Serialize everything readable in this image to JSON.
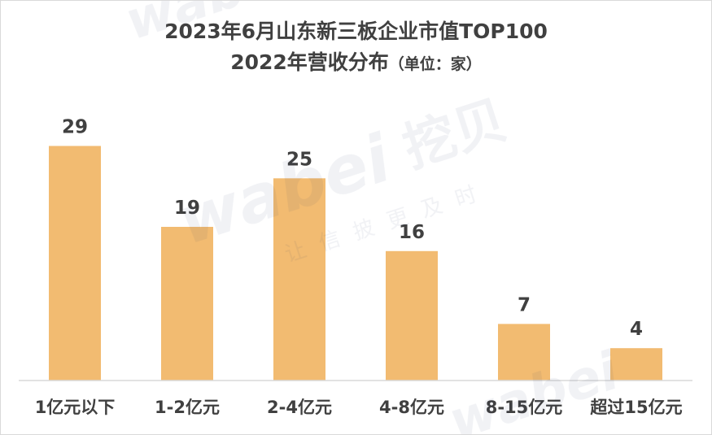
{
  "chart_data": {
    "type": "bar",
    "title": "2023年6月山东新三板企业市值TOP100",
    "subtitle": "2022年营收分布",
    "unit_note": "（单位：家）",
    "categories": [
      "1亿元以下",
      "1-2亿元",
      "2-4亿元",
      "4-8亿元",
      "8-15亿元",
      "超过15亿元"
    ],
    "values": [
      29,
      19,
      25,
      16,
      7,
      4
    ],
    "ylim": [
      0,
      30
    ],
    "xlabel": "",
    "ylabel": "",
    "grid": false,
    "legend": "none",
    "bar_color": "#F2BB71",
    "axis_color": "#d9d9d9",
    "label_color": "#404040"
  },
  "watermark": {
    "brand": "wabei",
    "cn": "挖贝",
    "slogan": "让信披更及时"
  }
}
